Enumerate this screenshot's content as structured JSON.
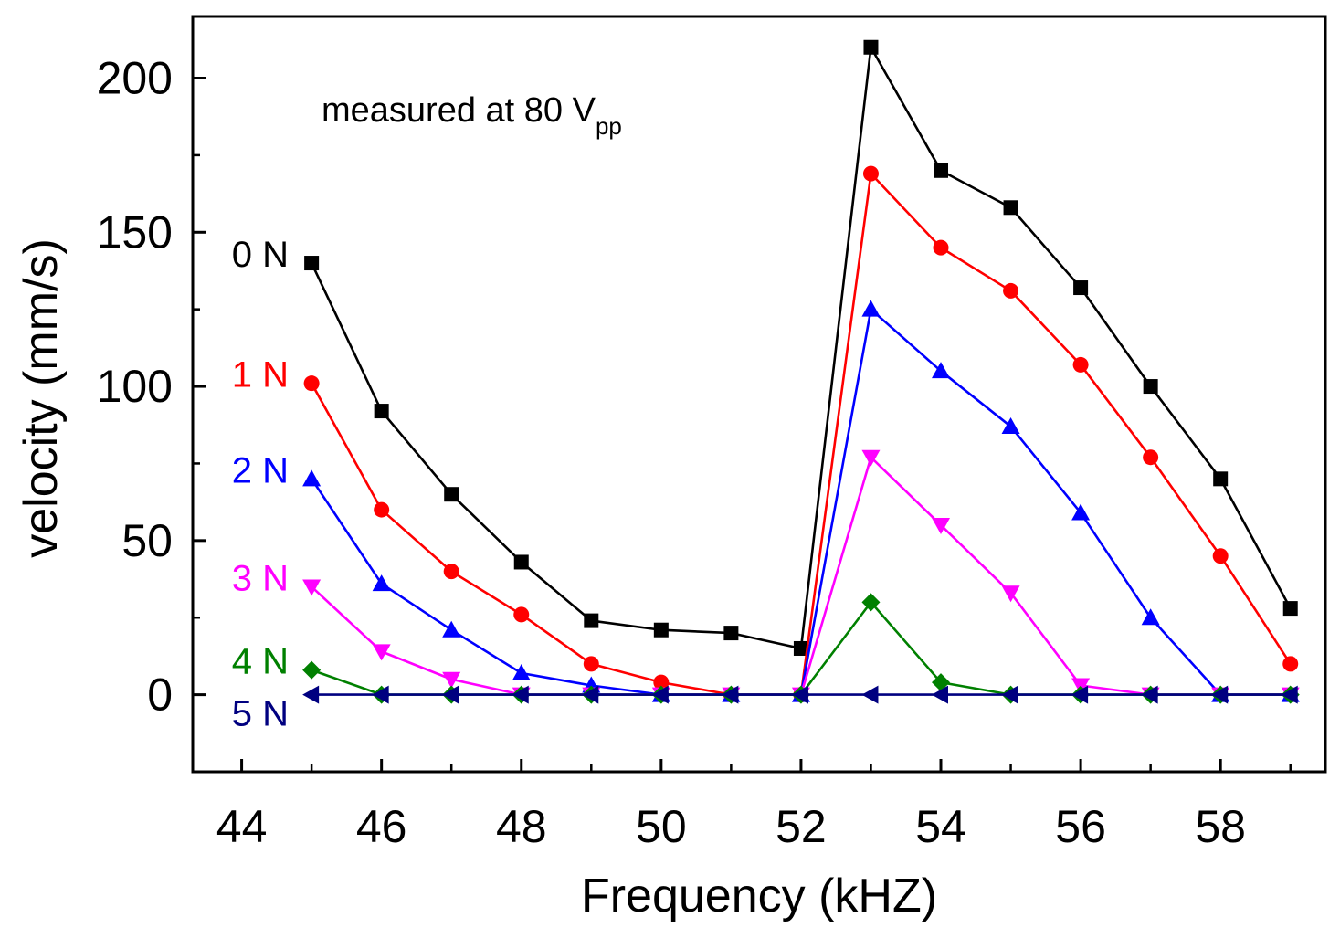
{
  "chart_data": {
    "type": "line",
    "xlabel": "Frequency (kHZ)",
    "ylabel": "velocity (mm/s)",
    "xlim": [
      43.3,
      59.5
    ],
    "ylim": [
      -25,
      220
    ],
    "xticks": [
      44,
      46,
      48,
      50,
      52,
      54,
      56,
      58
    ],
    "yticks": [
      0,
      50,
      100,
      150,
      200
    ],
    "annotation": {
      "text": "measured at 80 V",
      "subscript": "pp"
    },
    "x": [
      45,
      46,
      47,
      48,
      49,
      50,
      51,
      52,
      53,
      54,
      55,
      56,
      57,
      58,
      59
    ],
    "series": [
      {
        "name": "0 N",
        "color": "#000000",
        "marker": "square",
        "values": [
          140,
          92,
          65,
          43,
          24,
          21,
          20,
          15,
          210,
          170,
          158,
          132,
          100,
          70,
          28
        ]
      },
      {
        "name": "1 N",
        "color": "#ff0000",
        "marker": "circle",
        "values": [
          101,
          60,
          40,
          26,
          10,
          4,
          0,
          0,
          169,
          145,
          131,
          107,
          77,
          45,
          10
        ]
      },
      {
        "name": "2 N",
        "color": "#0000ff",
        "marker": "triangle-up",
        "values": [
          70,
          36,
          21,
          7,
          3,
          0,
          0,
          0,
          125,
          105,
          87,
          59,
          25,
          0,
          0
        ]
      },
      {
        "name": "3 N",
        "color": "#ff00ff",
        "marker": "triangle-down",
        "values": [
          35,
          14,
          5,
          0,
          0,
          0,
          0,
          0,
          77,
          55,
          33,
          3,
          0,
          0,
          0
        ]
      },
      {
        "name": "4 N",
        "color": "#008000",
        "marker": "diamond",
        "values": [
          8,
          0,
          0,
          0,
          0,
          0,
          0,
          0,
          30,
          4,
          0,
          0,
          0,
          0,
          0
        ]
      },
      {
        "name": "5 N",
        "color": "#000080",
        "marker": "triangle-left",
        "values": [
          0,
          0,
          0,
          0,
          0,
          0,
          0,
          0,
          0,
          0,
          0,
          0,
          0,
          0,
          0
        ]
      }
    ]
  }
}
